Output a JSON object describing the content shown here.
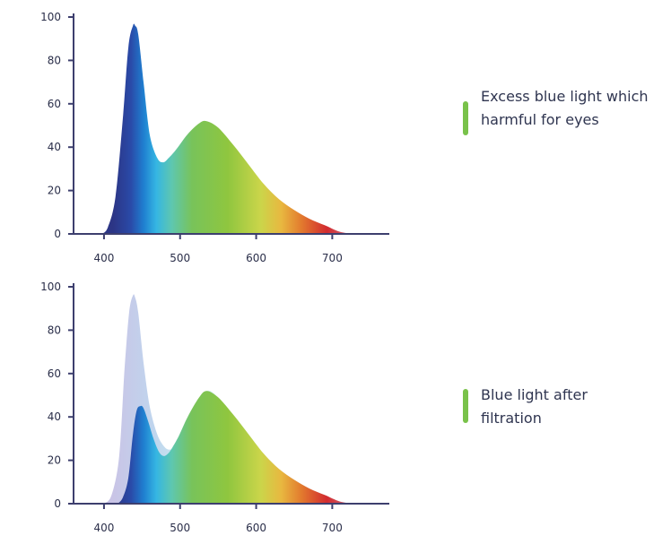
{
  "colors": {
    "axis": "#3d3f6e",
    "legend_marker": "#79c24a",
    "filtered_light": "#c4c3e4"
  },
  "chart_data": [
    {
      "type": "area",
      "title": "",
      "xlabel": "",
      "ylabel": "",
      "xlim": [
        360,
        775
      ],
      "ylim": [
        0,
        100
      ],
      "x_ticks": [
        400,
        500,
        600,
        700
      ],
      "y_ticks": [
        0,
        20,
        40,
        60,
        80,
        100
      ],
      "grid": false,
      "series": [
        {
          "x": [
            397,
            405,
            415,
            425,
            432,
            438,
            441,
            445,
            452,
            460,
            470,
            478,
            485,
            495,
            510,
            525,
            535,
            550,
            570,
            590,
            610,
            630,
            650,
            670,
            690,
            710,
            728
          ],
          "values": [
            0,
            3,
            17,
            54,
            86,
            96,
            96,
            92,
            70,
            46,
            35,
            33,
            35,
            39,
            46,
            51,
            52,
            49,
            41,
            32,
            23,
            16,
            11,
            7,
            4,
            1,
            0
          ]
        }
      ],
      "legend": {
        "text": "Excess blue light which harmful for eyes"
      }
    },
    {
      "type": "area",
      "title": "",
      "xlabel": "",
      "ylabel": "",
      "xlim": [
        360,
        775
      ],
      "ylim": [
        0,
        100
      ],
      "x_ticks": [
        400,
        500,
        600,
        700
      ],
      "y_ticks": [
        0,
        20,
        40,
        60,
        80,
        100
      ],
      "grid": false,
      "series": [
        {
          "x": [
            400,
            410,
            420,
            427,
            433,
            438,
            441,
            445,
            452,
            460,
            470,
            480,
            488,
            495,
            505,
            520,
            535,
            550,
            570,
            590,
            610,
            630,
            650,
            670,
            690,
            710,
            730
          ],
          "values": [
            0,
            4,
            22,
            62,
            88,
            96,
            95,
            88,
            65,
            45,
            32,
            26,
            25,
            27,
            35,
            45,
            52,
            49,
            41,
            32,
            23,
            16,
            11,
            7,
            4,
            1,
            0
          ]
        },
        {
          "x": [
            418,
            425,
            432,
            438,
            443,
            448,
            452,
            458,
            465,
            472,
            478,
            484,
            490,
            498,
            510,
            525,
            535,
            550,
            570,
            590,
            610,
            630,
            650,
            670,
            690,
            710,
            728
          ],
          "values": [
            0,
            3,
            12,
            32,
            43,
            45,
            44,
            38,
            30,
            24,
            22,
            23,
            26,
            31,
            40,
            49,
            52,
            49,
            41,
            32,
            23,
            16,
            11,
            7,
            4,
            1,
            0
          ]
        }
      ],
      "legend": {
        "text": "Blue light after filtration"
      }
    }
  ]
}
